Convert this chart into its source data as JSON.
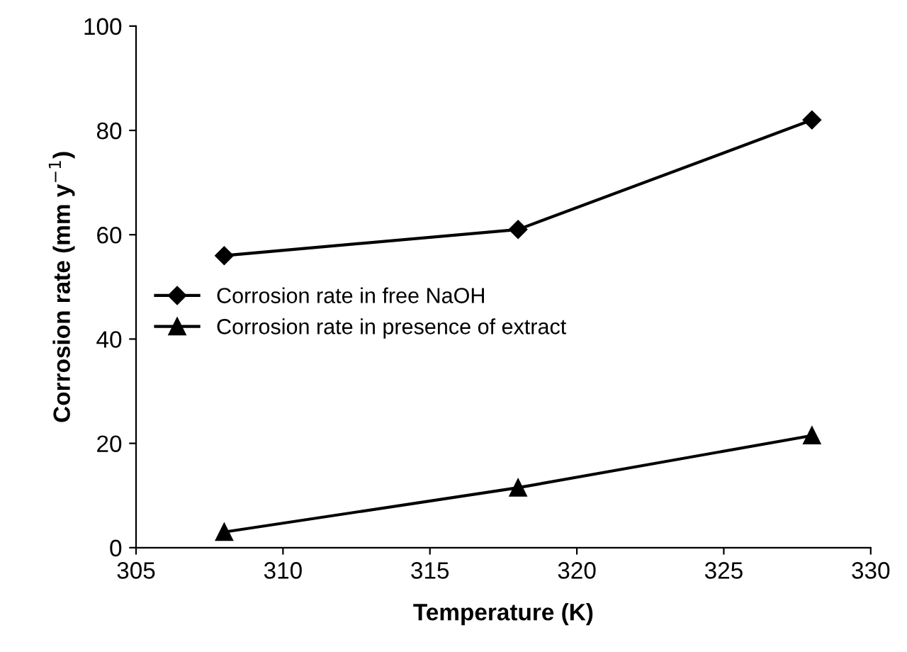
{
  "chart_data": {
    "type": "line",
    "xlabel": "Temperature (K)",
    "ylabel": "Corrosion rate (mm y$^{−1}$)",
    "x": [
      308,
      318,
      328
    ],
    "series": [
      {
        "name": "Corrosion rate in free NaOH",
        "color": "#000000",
        "values": [
          56,
          61,
          82
        ],
        "marker": "diamond"
      },
      {
        "name": "Corrosion rate in presence of extract",
        "color": "#000000",
        "values": [
          3,
          11.5,
          21.5
        ],
        "marker": "triangle"
      }
    ],
    "xlim": [
      305,
      330
    ],
    "xticks": [
      305,
      310,
      315,
      320,
      325,
      330
    ],
    "ylim": [
      0,
      100
    ],
    "yticks": [
      0,
      20,
      40,
      60,
      80,
      100
    ],
    "grid": false,
    "legend": "left",
    "line_style": "solid"
  }
}
